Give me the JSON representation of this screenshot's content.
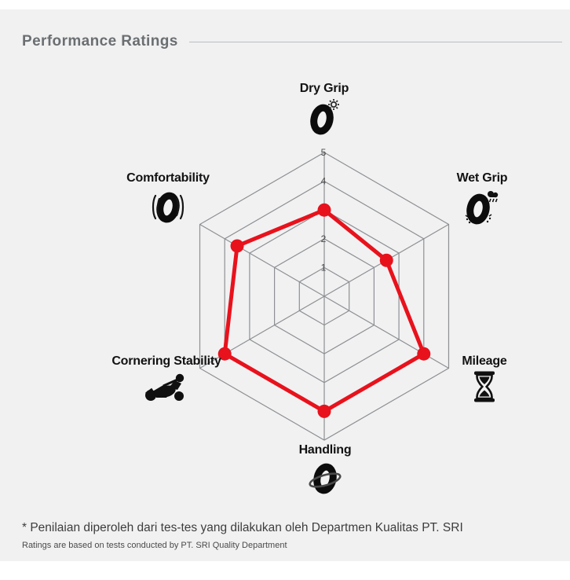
{
  "header": {
    "title": "Performance Ratings"
  },
  "chart_data": {
    "type": "radar",
    "title": "Performance Ratings",
    "indicators": [
      {
        "label": "Dry Grip",
        "icon": "tire-sun-icon"
      },
      {
        "label": "Wet Grip",
        "icon": "tire-rain-icon"
      },
      {
        "label": "Mileage",
        "icon": "hourglass-icon"
      },
      {
        "label": "Handling",
        "icon": "tire-rotation-icon"
      },
      {
        "label": "Cornering Stability",
        "icon": "motorcycle-lean-icon"
      },
      {
        "label": "Comfortability",
        "icon": "tire-vibration-icon"
      }
    ],
    "scale": {
      "min": 0,
      "max": 5,
      "ticks": [
        "1",
        "2",
        "3",
        "4",
        "5"
      ]
    },
    "grid": {
      "shape": "hexagon",
      "levels": 5,
      "line_color": "#8d9093"
    },
    "legend": "none",
    "series": [
      {
        "name": "Performance Ratings",
        "color": "#e8121c",
        "values": [
          3,
          2.5,
          4,
          4,
          4,
          3.5
        ]
      }
    ]
  },
  "footnote": {
    "line1": "* Penilaian diperoleh dari tes-tes yang dilakukan oleh Departmen Kualitas PT. SRI",
    "line2": "Ratings are based on tests conducted by PT. SRI Quality Department"
  },
  "colors": {
    "accent_red": "#e8121c",
    "panel_bg": "#f1f1f2",
    "header_text": "#6b6f72",
    "grid_line": "#8d9093"
  }
}
